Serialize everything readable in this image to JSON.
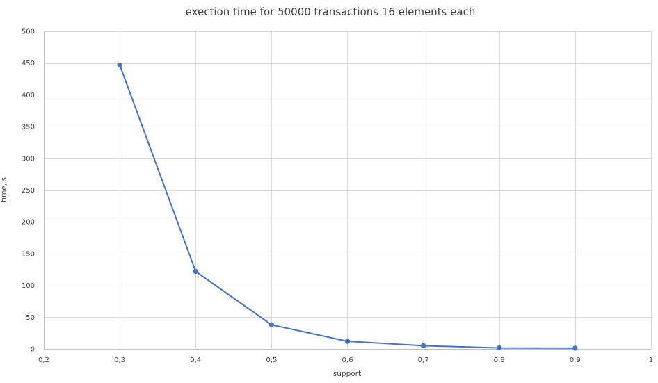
{
  "chart_data": {
    "type": "line",
    "title": "exection time for 50000 transactions 16 elements each",
    "xlabel": "support",
    "ylabel": "time, s",
    "xlim": [
      0.2,
      1.0
    ],
    "ylim": [
      0,
      500
    ],
    "x_ticks": [
      "0,2",
      "0,3",
      "0,4",
      "0,5",
      "0,6",
      "0,7",
      "0,8",
      "0,9",
      "1"
    ],
    "y_ticks": [
      "0",
      "50",
      "100",
      "150",
      "200",
      "250",
      "300",
      "350",
      "400",
      "450",
      "500"
    ],
    "grid": true,
    "series": [
      {
        "name": "execution time",
        "color": "#4472c4",
        "x": [
          0.3,
          0.4,
          0.5,
          0.6,
          0.7,
          0.8,
          0.9
        ],
        "values": [
          447,
          122,
          38,
          12,
          5,
          1.5,
          1.2
        ]
      }
    ]
  }
}
